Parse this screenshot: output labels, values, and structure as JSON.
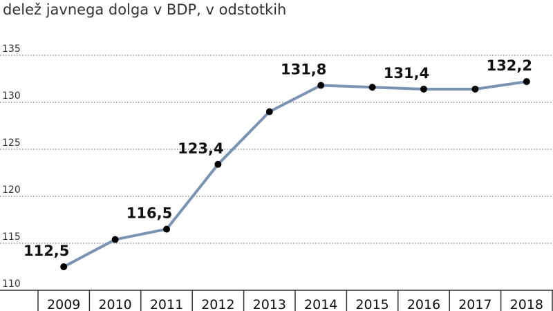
{
  "chart_data": {
    "type": "line",
    "title": "delež javnega dolga v BDP, v odstotkih",
    "xlabel": "",
    "ylabel": "",
    "x": [
      "2009",
      "2010",
      "2011",
      "2012",
      "2013",
      "2014",
      "2015",
      "2016",
      "2017",
      "2018"
    ],
    "series": [
      {
        "values": [
          112.5,
          115.4,
          116.5,
          123.4,
          129.0,
          131.8,
          131.6,
          131.4,
          131.4,
          132.2
        ]
      }
    ],
    "data_labels": [
      {
        "index": 0,
        "text": "112,5"
      },
      {
        "index": 2,
        "text": "116,5"
      },
      {
        "index": 3,
        "text": "123,4"
      },
      {
        "index": 5,
        "text": "131,8"
      },
      {
        "index": 7,
        "text": "131,4"
      },
      {
        "index": 9,
        "text": "132,2"
      }
    ],
    "y_ticks": [
      "110",
      "115",
      "120",
      "125",
      "130",
      "135"
    ],
    "ylim": [
      110,
      135
    ],
    "grid": true,
    "line_color": "#7b93b3",
    "marker_color": "#000000"
  }
}
